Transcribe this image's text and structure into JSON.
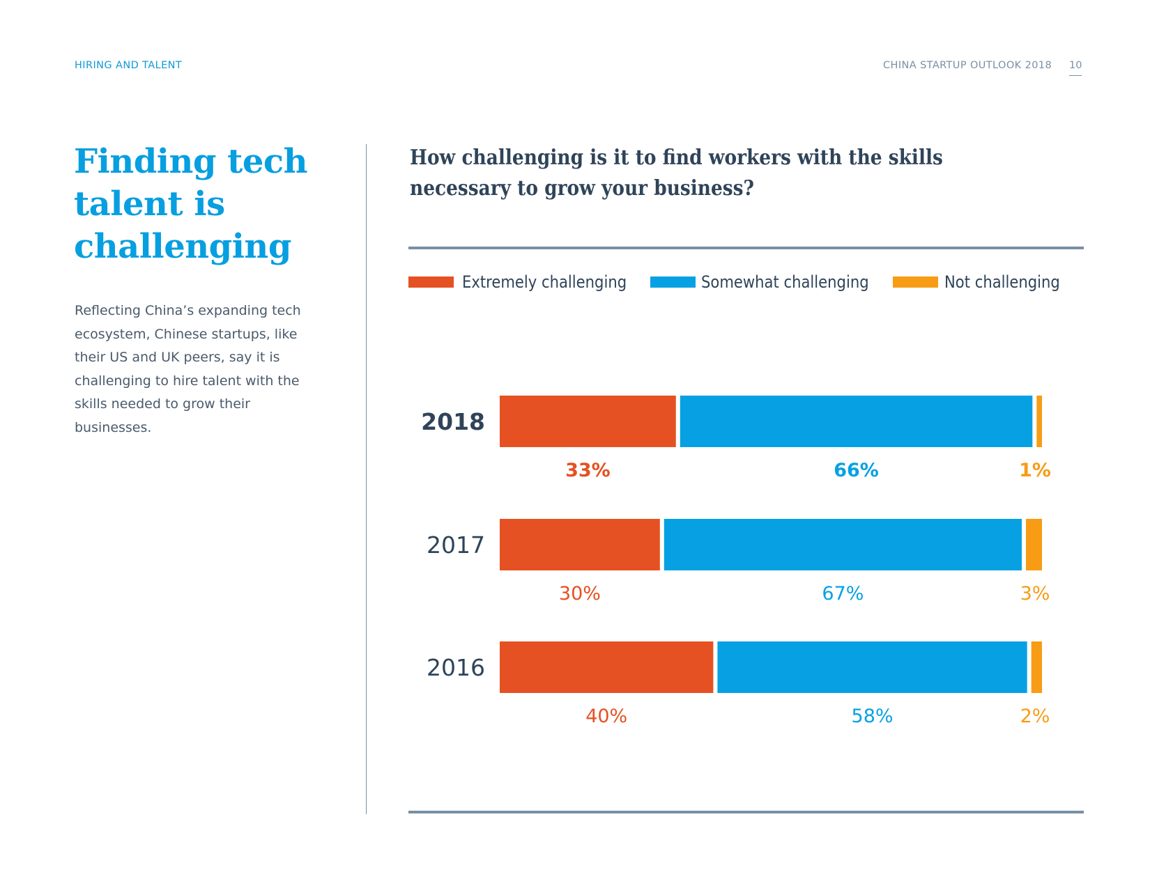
{
  "header": {
    "section": "HIRING AND TALENT",
    "report_title": "CHINA STARTUP OUTLOOK 2018",
    "page_number": "10"
  },
  "left": {
    "headline": "Finding tech talent is challenging",
    "body": "Reflecting China’s expanding tech ecosystem, Chinese startups, like their US and UK peers, say it is challenging to hire talent with the skills needed to grow their businesses."
  },
  "colors": {
    "extremely": "#e55122",
    "somewhat": "#07a1e3",
    "not": "#f79c14",
    "text_dark": "#2f4459",
    "accent": "#079fe0",
    "rule": "#7890a6"
  },
  "chart_data": {
    "type": "bar",
    "orientation": "horizontal-stacked",
    "title": "How challenging is it to find workers with the skills necessary to grow your business?",
    "xlabel": "",
    "ylabel": "",
    "xlim": [
      0,
      100
    ],
    "grid": false,
    "legend_position": "top",
    "categories": [
      "2018",
      "2017",
      "2016"
    ],
    "highlight_category": "2018",
    "series": [
      {
        "name": "Extremely challenging",
        "key": "extremely",
        "values": [
          33,
          30,
          40
        ],
        "labels": [
          "33%",
          "30%",
          "40%"
        ]
      },
      {
        "name": "Somewhat challenging",
        "key": "somewhat",
        "values": [
          66,
          67,
          58
        ],
        "labels": [
          "66%",
          "67%",
          "58%"
        ]
      },
      {
        "name": "Not challenging",
        "key": "not",
        "values": [
          1,
          3,
          2
        ],
        "labels": [
          "1%",
          "3%",
          "2%"
        ]
      }
    ]
  }
}
